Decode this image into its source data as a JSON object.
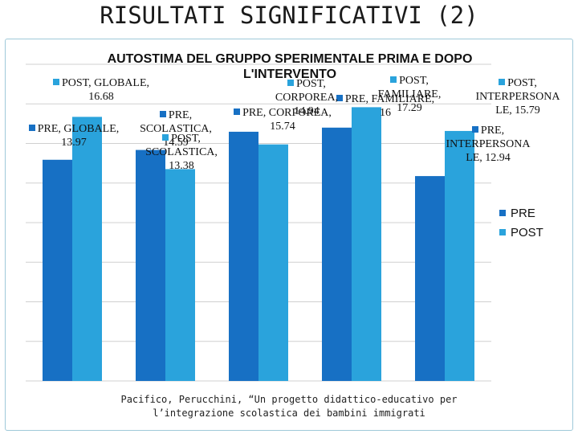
{
  "slide": {
    "title": "RISULTATI SIGNIFICATIVI (2)",
    "caption_line1": "Pacifico, Perucchini, “Un progetto didattico-educativo per",
    "caption_line2": "l’integrazione scolastica dei bambini immigrati"
  },
  "colors": {
    "pre": "#1770c4",
    "post": "#2aa3dc",
    "grid": "#d0d0d0",
    "frame": "#9fc9d9"
  },
  "chart_data": {
    "type": "bar",
    "title": "AUTOSTIMA DEL GRUPPO SPERIMENTALE PRIMA E DOPO L'INTERVENTO",
    "categories": [
      "GLOBALE",
      "SCOLASTICA",
      "CORPOREA",
      "FAMILIARE",
      "INTERPERSONALE"
    ],
    "series": [
      {
        "name": "PRE",
        "values": [
          13.97,
          14.59,
          15.74,
          16,
          12.94
        ]
      },
      {
        "name": "POST",
        "values": [
          16.68,
          13.38,
          14.94,
          17.29,
          15.79
        ]
      }
    ],
    "data_labels": {
      "PRE": [
        "PRE, GLOBALE,\n13.97",
        "PRE,\nSCOLASTICA,\n14.59",
        "PRE, CORPOREA,\n15.74",
        "PRE, FAMILIARE,\n16",
        "PRE,\nINTERPERSONA\nLE, 12.94"
      ],
      "POST": [
        "POST, GLOBALE,\n16.68",
        "POST,\nSCOLASTICA,\n13.38",
        "POST,\nCORPOREA,\n14.94",
        "POST,\nFAMILIARE,\n17.29",
        "POST,\nINTERPERSONA\nLE, 15.79"
      ]
    },
    "ylim": [
      0,
      20
    ],
    "grid": true,
    "legend": "right"
  }
}
